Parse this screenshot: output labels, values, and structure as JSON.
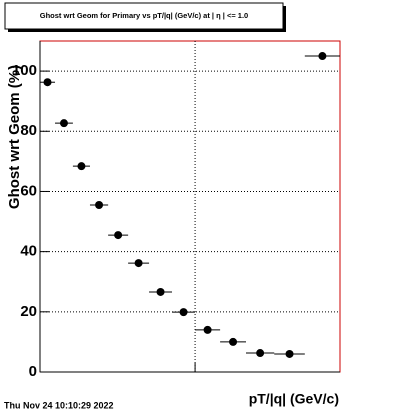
{
  "chart_data": {
    "type": "histogram",
    "title": "Ghost wrt Geom for Primary vs pT/|q| (GeV/c) at | η | <= 1.0",
    "x_label": "pT/|q| (GeV/c)",
    "y_label": "Ghost wrt Geom (%)",
    "timestamp": "Thu Nov 24 10:10:29 2022",
    "bins": [
      0.1,
      0.125,
      0.163,
      0.21,
      0.275,
      0.37,
      0.505,
      0.71,
      1.0,
      1.45,
      2.13,
      3.24,
      5.1,
      8.6
    ],
    "values": [
      96.3,
      82.7,
      68.4,
      55.5,
      45.5,
      36.2,
      26.6,
      19.9,
      14.0,
      10.0,
      6.3,
      6.0,
      105.0
    ],
    "color": "#000000",
    "frame_color": "#cc0000",
    "xlim": [
      0.1,
      8.6
    ],
    "xscale": "log",
    "xticks": [
      1
    ],
    "xtick_labels": false,
    "ylim": [
      0,
      110
    ],
    "yticks": [
      0,
      20,
      40,
      60,
      80,
      100
    ],
    "grid": true
  }
}
